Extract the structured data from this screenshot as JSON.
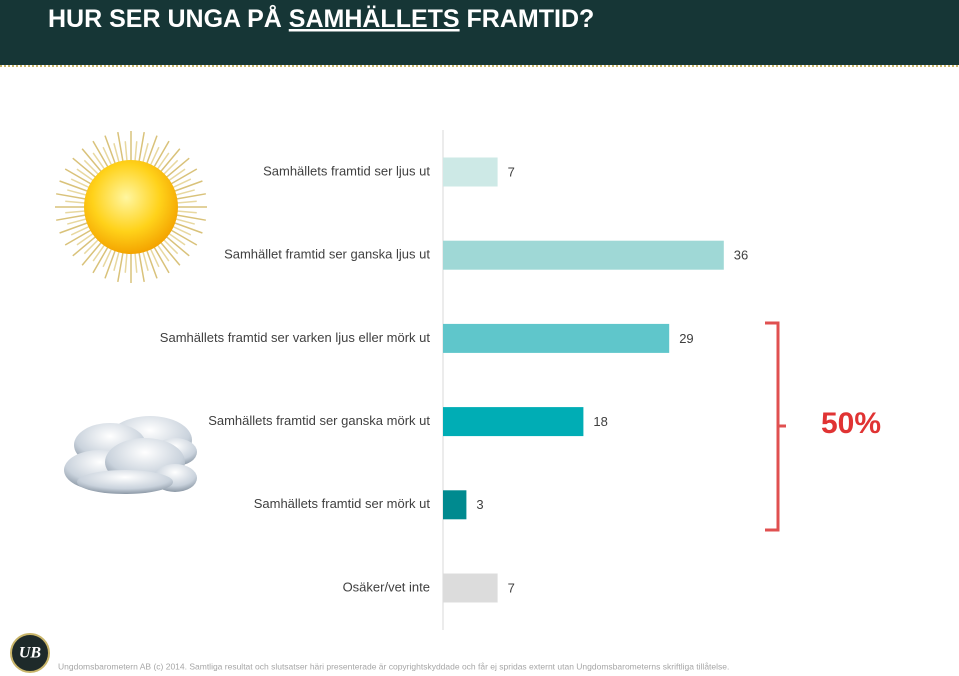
{
  "chart_data": {
    "type": "bar",
    "title_parts": [
      "HUR SER UNGA PÅ ",
      "SAMHÄLLETS",
      " FRAMTID?"
    ],
    "categories": [
      "Samhällets framtid ser ljus ut",
      "Samhället framtid ser ganska ljus ut",
      "Samhällets framtid ser varken ljus eller mörk ut",
      "Samhällets framtid ser ganska mörk ut",
      "Samhällets framtid ser mörk ut",
      "Osäker/vet inte"
    ],
    "values": [
      7,
      36,
      29,
      18,
      3,
      7
    ],
    "colors": [
      "#cde9e6",
      "#9fd8d6",
      "#5fc6cb",
      "#00adb5",
      "#008a8f",
      "#dcdcdc"
    ],
    "annotation": "50%",
    "logo": "UB",
    "footer": "Ungdomsbarometern  AB (c) 2014. Samtliga resultat och slutsatser häri presenterade  är copyrightskyddade och får ej spridas externt utan Ungdomsbarometerns  skriftliga tillåtelse."
  }
}
